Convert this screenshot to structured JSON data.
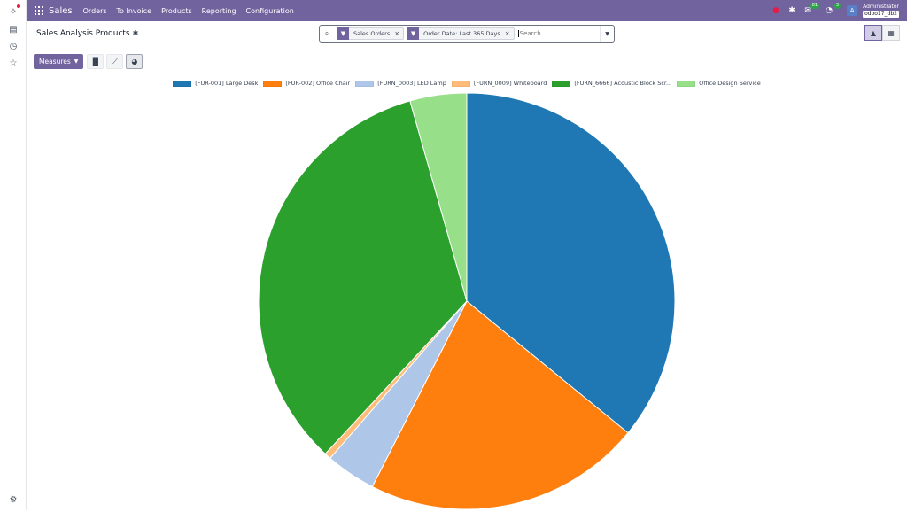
{
  "app": {
    "name": "Sales",
    "menu": [
      "Orders",
      "To Invoice",
      "Products",
      "Reporting",
      "Configuration"
    ]
  },
  "navbar_right": {
    "messages_count": "81",
    "activities_count": "3",
    "avatar_letter": "A",
    "user_name": "Administrator",
    "database": "odoo17_db2"
  },
  "control_panel": {
    "title": "Sales Analysis Products",
    "facets": [
      "Sales Orders",
      "Order Date: Last 365 Days"
    ],
    "search_placeholder": "Search..."
  },
  "toolbar": {
    "measures_label": "Measures"
  },
  "chart_data": {
    "type": "pie",
    "title": "",
    "legend_position": "top",
    "categories": [
      "[FUR-001] Large Desk",
      "[FUR-002] Office Chair",
      "[FURN_0003] LED Lamp",
      "[FURN_0009] Whiteboard",
      "[FURN_6666] Acoustic Block Scr...",
      "Office Design Service"
    ],
    "values": [
      35.9,
      21.6,
      3.9,
      0.5,
      33.7,
      4.4
    ],
    "colors": [
      "#1f77b4",
      "#ff7f0e",
      "#aec7e8",
      "#ffbb78",
      "#2ca02c",
      "#98df8a"
    ]
  },
  "colors": {
    "brand": "#71639e"
  }
}
